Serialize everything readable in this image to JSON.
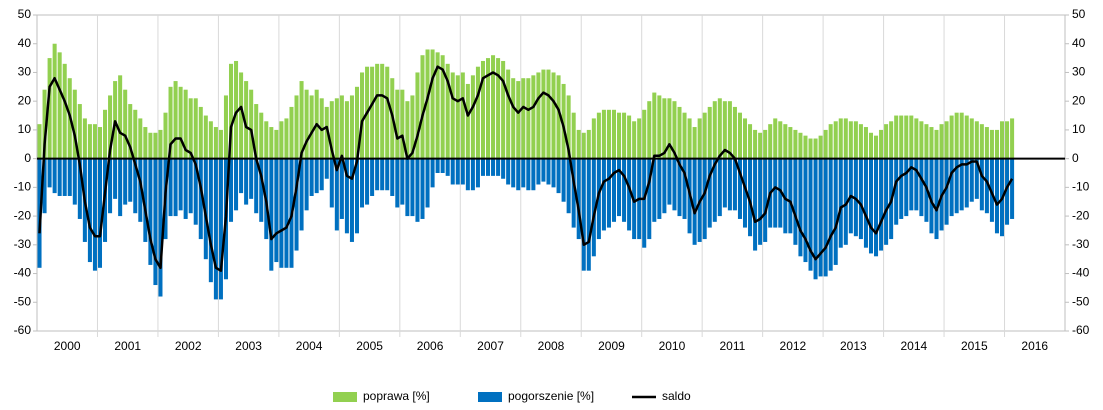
{
  "chart_data": {
    "type": "bar_line",
    "categories": [
      "2000",
      "2001",
      "2002",
      "2003",
      "2004",
      "2005",
      "2006",
      "2007",
      "2008",
      "2009",
      "2010",
      "2011",
      "2012",
      "2013",
      "2014",
      "2015",
      "2016"
    ],
    "series": [
      {
        "name": "poprawa [%]",
        "color": "#92d050",
        "type": "bar",
        "values": [
          [
            12,
            24,
            35,
            40,
            37,
            33,
            28,
            24,
            19,
            14,
            12,
            12
          ],
          [
            11,
            17,
            22,
            27,
            29,
            24,
            19,
            17,
            14,
            11,
            9,
            9
          ],
          [
            10,
            16,
            25,
            27,
            25,
            24,
            21,
            21,
            18,
            15,
            13,
            11
          ],
          [
            10,
            22,
            33,
            34,
            30,
            27,
            24,
            19,
            16,
            13,
            11,
            10
          ],
          [
            13,
            14,
            18,
            22,
            27,
            24,
            22,
            24,
            21,
            18,
            20,
            21
          ],
          [
            22,
            20,
            22,
            25,
            30,
            32,
            32,
            33,
            33,
            32,
            28,
            24
          ],
          [
            24,
            20,
            22,
            30,
            36,
            38,
            38,
            37,
            36,
            33,
            30,
            29
          ],
          [
            30,
            26,
            29,
            32,
            34,
            35,
            36,
            35,
            34,
            31,
            28,
            27
          ],
          [
            28,
            28,
            29,
            30,
            31,
            31,
            30,
            29,
            26,
            22,
            16,
            10
          ],
          [
            9,
            10,
            14,
            16,
            17,
            17,
            17,
            16,
            16,
            15,
            13,
            14
          ],
          [
            17,
            20,
            23,
            22,
            21,
            21,
            20,
            18,
            16,
            14,
            11,
            14
          ],
          [
            16,
            18,
            20,
            21,
            20,
            20,
            18,
            16,
            14,
            12,
            10,
            9
          ],
          [
            10,
            12,
            14,
            13,
            12,
            11,
            10,
            9,
            8,
            7,
            7,
            8
          ],
          [
            10,
            12,
            13,
            14,
            14,
            13,
            13,
            12,
            11,
            9,
            8,
            10
          ],
          [
            12,
            13,
            15,
            15,
            15,
            15,
            14,
            13,
            12,
            11,
            10,
            12
          ],
          [
            13,
            15,
            16,
            16,
            15,
            14,
            13,
            12,
            11,
            10,
            10,
            13
          ],
          [
            13,
            14
          ]
        ]
      },
      {
        "name": "pogorszenie [%]",
        "color": "#0070c0",
        "type": "bar",
        "values": [
          [
            -38,
            -19,
            -10,
            -12,
            -13,
            -13,
            -13,
            -16,
            -21,
            -29,
            -36,
            -39
          ],
          [
            -38,
            -29,
            -19,
            -14,
            -20,
            -16,
            -15,
            -19,
            -22,
            -29,
            -37,
            -44
          ],
          [
            -48,
            -28,
            -20,
            -20,
            -18,
            -21,
            -19,
            -23,
            -28,
            -35,
            -43,
            -49
          ],
          [
            -49,
            -42,
            -22,
            -18,
            -12,
            -16,
            -14,
            -19,
            -22,
            -28,
            -39,
            -36
          ],
          [
            -38,
            -38,
            -38,
            -32,
            -25,
            -18,
            -13,
            -12,
            -11,
            -7,
            -17,
            -25
          ],
          [
            -21,
            -26,
            -29,
            -26,
            -17,
            -16,
            -13,
            -11,
            -11,
            -11,
            -13,
            -17
          ],
          [
            -16,
            -20,
            -20,
            -22,
            -21,
            -17,
            -10,
            -5,
            -5,
            -6,
            -9,
            -9
          ],
          [
            -9,
            -11,
            -11,
            -10,
            -6,
            -6,
            -6,
            -6,
            -7,
            -9,
            -10,
            -11
          ],
          [
            -10,
            -11,
            -11,
            -9,
            -8,
            -9,
            -10,
            -12,
            -15,
            -19,
            -24,
            -28
          ],
          [
            -39,
            -39,
            -34,
            -28,
            -25,
            -24,
            -22,
            -20,
            -22,
            -25,
            -28,
            -28
          ],
          [
            -31,
            -28,
            -22,
            -21,
            -19,
            -16,
            -18,
            -20,
            -21,
            -26,
            -30,
            -29
          ],
          [
            -28,
            -24,
            -22,
            -20,
            -17,
            -18,
            -18,
            -21,
            -24,
            -27,
            -32,
            -30
          ],
          [
            -29,
            -24,
            -24,
            -24,
            -26,
            -26,
            -30,
            -34,
            -36,
            -39,
            -42,
            -41
          ],
          [
            -41,
            -39,
            -37,
            -31,
            -30,
            -26,
            -27,
            -28,
            -31,
            -33,
            -34,
            -32
          ],
          [
            -30,
            -28,
            -23,
            -21,
            -20,
            -18,
            -18,
            -20,
            -22,
            -26,
            -28,
            -25
          ],
          [
            -23,
            -20,
            -19,
            -18,
            -17,
            -15,
            -14,
            -18,
            -19,
            -22,
            -26,
            -27
          ],
          [
            -23,
            -21
          ]
        ]
      },
      {
        "name": "saldo",
        "color": "#000000",
        "type": "line",
        "values": [
          [
            -26,
            5,
            25,
            28,
            24,
            20,
            15,
            8,
            -2,
            -15,
            -24,
            -27
          ],
          [
            -27,
            -12,
            3,
            13,
            9,
            8,
            4,
            -2,
            -8,
            -18,
            -28,
            -35
          ],
          [
            -38,
            -12,
            5,
            7,
            7,
            3,
            2,
            -2,
            -10,
            -20,
            -30,
            -38
          ],
          [
            -39,
            -20,
            11,
            16,
            18,
            11,
            10,
            0,
            -6,
            -15,
            -28,
            -26
          ],
          [
            -25,
            -24,
            -20,
            -10,
            2,
            6,
            9,
            12,
            10,
            11,
            3,
            -4
          ],
          [
            1,
            -6,
            -7,
            -1,
            13,
            16,
            19,
            22,
            22,
            21,
            15,
            7
          ],
          [
            8,
            0,
            2,
            8,
            15,
            21,
            28,
            32,
            31,
            27,
            21,
            20
          ],
          [
            21,
            15,
            18,
            22,
            28,
            29,
            30,
            29,
            27,
            22,
            18,
            16
          ],
          [
            18,
            17,
            18,
            21,
            23,
            22,
            20,
            17,
            11,
            3,
            -8,
            -18
          ],
          [
            -30,
            -29,
            -20,
            -12,
            -8,
            -7,
            -5,
            -4,
            -6,
            -10,
            -15,
            -14
          ],
          [
            -14,
            -8,
            1,
            1,
            2,
            5,
            2,
            -2,
            -5,
            -12,
            -19,
            -15
          ],
          [
            -12,
            -6,
            -2,
            1,
            3,
            2,
            0,
            -5,
            -10,
            -15,
            -22,
            -21
          ],
          [
            -19,
            -12,
            -10,
            -11,
            -14,
            -15,
            -20,
            -25,
            -28,
            -32,
            -35,
            -33
          ],
          [
            -31,
            -27,
            -24,
            -17,
            -16,
            -13,
            -14,
            -16,
            -20,
            -24,
            -26,
            -22
          ],
          [
            -18,
            -15,
            -8,
            -6,
            -5,
            -3,
            -4,
            -7,
            -10,
            -15,
            -18,
            -13
          ],
          [
            -10,
            -5,
            -3,
            -2,
            -2,
            -1,
            -1,
            -6,
            -8,
            -12,
            -16,
            -14
          ],
          [
            -10,
            -7
          ]
        ]
      }
    ],
    "ylim": [
      -60,
      50
    ],
    "yticks": [
      -60,
      -50,
      -40,
      -30,
      -20,
      -10,
      0,
      10,
      20,
      30,
      40,
      50
    ],
    "y2lim": [
      -60,
      50
    ],
    "y2ticks": [
      -60,
      -50,
      -40,
      -30,
      -20,
      -10,
      0,
      10,
      20,
      30,
      40,
      50
    ],
    "legend": "bottom"
  }
}
